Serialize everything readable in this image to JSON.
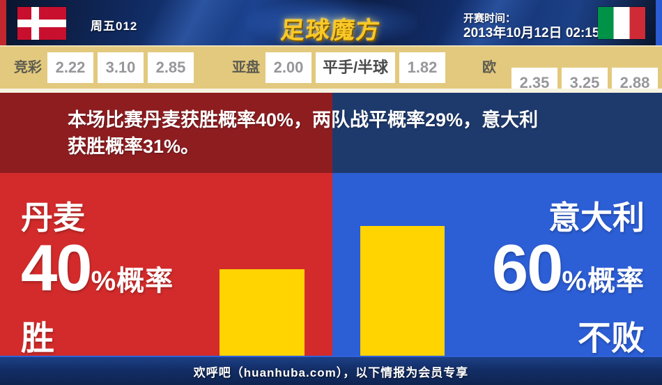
{
  "header": {
    "match_code": "周五012",
    "logo_text": "足球魔方",
    "kickoff_label": "开赛时间：",
    "kickoff_datetime": "2013年10月12日 02:15"
  },
  "odds_bar": {
    "groups": [
      {
        "label": "竞彩",
        "values": [
          "2.22",
          "3.10",
          "2.85"
        ]
      },
      {
        "label": "亚盘",
        "values": [
          "2.00",
          "平手/半球",
          "1.82"
        ]
      },
      {
        "label": "欧赔",
        "values": [
          "2.35",
          "3.25",
          "2.88"
        ]
      }
    ]
  },
  "analysis": {
    "summary_line1": "本场比赛丹麦获胜概率40%，两队战平概率29%，意大利",
    "summary_line2": "获胜概率31%。"
  },
  "chart_data": {
    "type": "bar",
    "categories": [
      "丹麦",
      "意大利"
    ],
    "values": [
      40,
      60
    ],
    "unit": "%",
    "left": {
      "team": "丹麦",
      "percent": "40",
      "percent_suffix": "%概率",
      "outcome": "胜"
    },
    "right": {
      "team": "意大利",
      "percent": "60",
      "percent_suffix": "%概率",
      "outcome": "不败"
    },
    "bar_color": "#ffd400",
    "legend": "none",
    "grid": false
  },
  "footer": {
    "text": "欢呼吧（huanhuba.com），以下情报为会员专享"
  },
  "colors": {
    "header_bg": "#0d1f48",
    "header_left_stripe": "#c1272d",
    "header_right_stripe": "#2a5ad4",
    "odds_bg": "#e3c97e",
    "home_dark": "#8e1d20",
    "home_bright": "#d32b2b",
    "away_dark": "#1e3a6d",
    "away_bright": "#2c5ed6",
    "bar_yellow": "#ffd400",
    "footer_bg": "#132e66",
    "logo_gold": "#f9c825"
  }
}
